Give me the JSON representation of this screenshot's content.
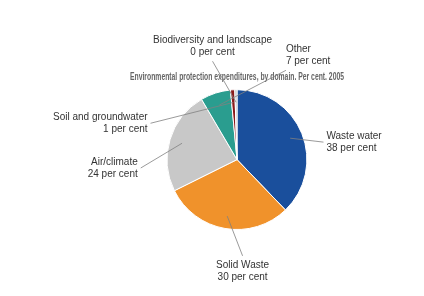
{
  "chart_data": {
    "type": "pie",
    "title": "Environmental protection expenditures, by domain. Per cent. 2005",
    "categories": [
      "Waste water",
      "Solid Waste",
      "Air/climate",
      "Other",
      "Soil and groundwater",
      "Biodiversity and landscape"
    ],
    "values": [
      38,
      30,
      24,
      7,
      1,
      0.5
    ],
    "value_labels": [
      "38 per cent",
      "30 per cent",
      "24 per cent",
      "7 per cent",
      "1 per cent",
      "0 per cent"
    ],
    "colors": [
      "#1a4f9c",
      "#f0922b",
      "#c8c8c8",
      "#2a9d8f",
      "#8b1a1a",
      "#c0c0c0"
    ],
    "data_labels": true
  }
}
